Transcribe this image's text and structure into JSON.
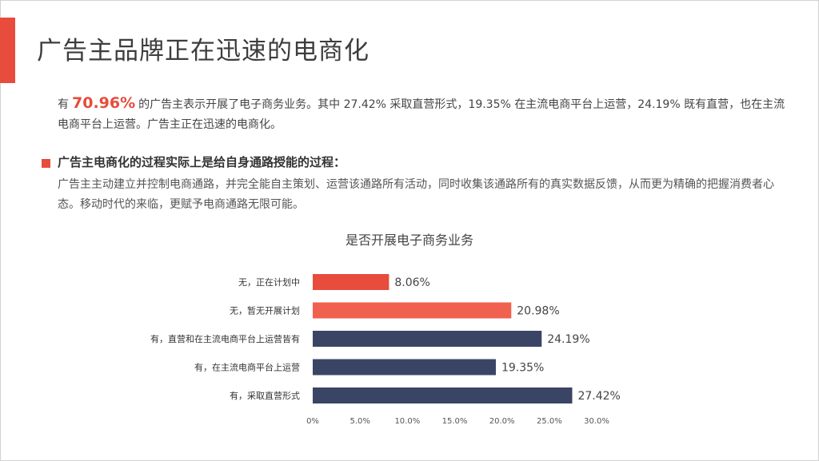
{
  "header": {
    "title": "广告主品牌正在迅速的电商化"
  },
  "intro": {
    "prefix": "有",
    "highlight": "70.96%",
    "rest": "的广告主表示开展了电子商务业务。其中 27.42% 采取直营形式，19.35% 在主流电商平台上运营，24.19% 既有直营，也在主流电商平台上运营。广告主正在迅速的电商化。"
  },
  "section": {
    "heading": "广告主电商化的过程实际上是给自身通路授能的过程：",
    "body": "广告主主动建立并控制电商通路，并完全能自主策划、运营该通路所有活动，同时收集该通路所有的真实数据反馈，从而更为精确的把握消费者心态。移动时代的来临，更赋予电商通路无限可能。"
  },
  "colors": {
    "accent": "#e74c3c",
    "light_red": "#f0614f",
    "navy": "#3a4565"
  },
  "chart_data": {
    "type": "bar",
    "orientation": "horizontal",
    "title": "是否开展电子商务业务",
    "categories": [
      "无，正在计划中",
      "无，暂无开展计划",
      "有，直营和在主流电商平台上运营皆有",
      "有，在主流电商平台上运营",
      "有，采取直营形式"
    ],
    "values": [
      8.06,
      20.98,
      24.19,
      19.35,
      27.42
    ],
    "value_labels": [
      "8.06%",
      "20.98%",
      "24.19%",
      "19.35%",
      "27.42%"
    ],
    "bar_colors": [
      "#e74c3c",
      "#f0614f",
      "#3a4565",
      "#3a4565",
      "#3a4565"
    ],
    "xlim": [
      0,
      30
    ],
    "xticks": [
      0,
      5,
      10,
      15,
      20,
      25,
      30
    ],
    "xtick_labels": [
      "0%",
      "5.0%",
      "10.0%",
      "15.0%",
      "20.0%",
      "25.0%",
      "30.0%"
    ],
    "grid": false,
    "legend": "none"
  }
}
